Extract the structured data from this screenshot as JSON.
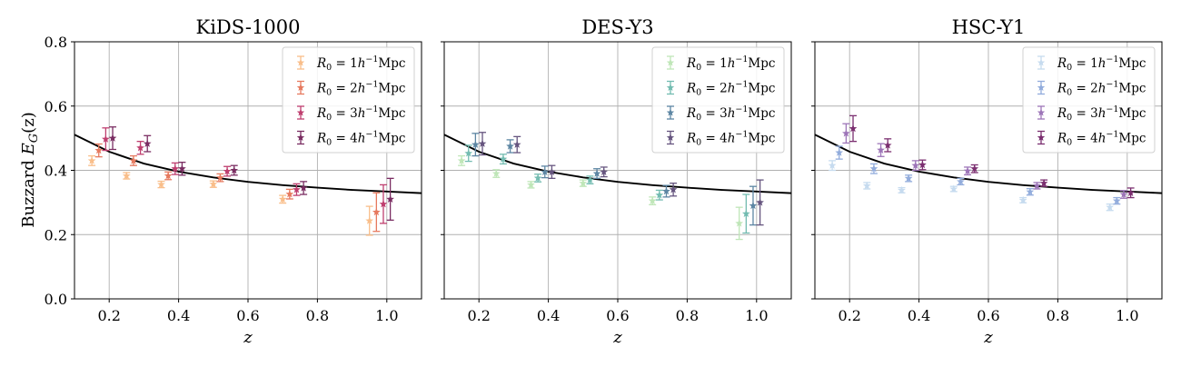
{
  "chart_data": {
    "type": "scatter",
    "ylabel_prefix": "Buzzard ",
    "ylabel_math": "E",
    "ylabel_sub": "G",
    "ylabel_arg": "(z)",
    "xlabel": "z",
    "xlim": [
      0.1,
      1.1
    ],
    "ylim": [
      0.0,
      0.8
    ],
    "xticks": [
      0.2,
      0.4,
      0.6,
      0.8,
      1.0
    ],
    "xtick_labels": [
      "0.2",
      "0.4",
      "0.6",
      "0.8",
      "1.0"
    ],
    "yticks": [
      0.0,
      0.2,
      0.4,
      0.6,
      0.8
    ],
    "ytick_labels": [
      "0.0",
      "0.2",
      "0.4",
      "0.6",
      "0.8"
    ],
    "theory_curve": {
      "color": "#000000",
      "points": [
        [
          0.1,
          0.511
        ],
        [
          0.2,
          0.458
        ],
        [
          0.3,
          0.421
        ],
        [
          0.4,
          0.396
        ],
        [
          0.5,
          0.378
        ],
        [
          0.6,
          0.364
        ],
        [
          0.7,
          0.354
        ],
        [
          0.8,
          0.346
        ],
        [
          0.9,
          0.339
        ],
        [
          1.0,
          0.334
        ],
        [
          1.1,
          0.329
        ]
      ]
    },
    "legend_entries": [
      {
        "prefix": "R",
        "sub": "0",
        "mid": " = ",
        "num": "1",
        "h": "h",
        "sup": "−1",
        "unit": "Mpc"
      },
      {
        "prefix": "R",
        "sub": "0",
        "mid": " = ",
        "num": "2",
        "h": "h",
        "sup": "−1",
        "unit": "Mpc"
      },
      {
        "prefix": "R",
        "sub": "0",
        "mid": " = ",
        "num": "3",
        "h": "h",
        "sup": "−1",
        "unit": "Mpc"
      },
      {
        "prefix": "R",
        "sub": "0",
        "mid": " = ",
        "num": "4",
        "h": "h",
        "sup": "−1",
        "unit": "Mpc"
      }
    ],
    "panels": [
      {
        "title": "KiDS-1000",
        "legend_location": "top-right",
        "colors": [
          "#f9be8a",
          "#e67a5f",
          "#bf3f6f",
          "#7a2d62"
        ],
        "series": [
          {
            "name": "R0 = 1 h^-1 Mpc",
            "points": [
              [
                0.15,
                0.43,
                0.015
              ],
              [
                0.25,
                0.383,
                0.01
              ],
              [
                0.35,
                0.356,
                0.01
              ],
              [
                0.5,
                0.357,
                0.01
              ],
              [
                0.7,
                0.31,
                0.012
              ],
              [
                0.95,
                0.243,
                0.045
              ]
            ]
          },
          {
            "name": "R0 = 2 h^-1 Mpc",
            "points": [
              [
                0.17,
                0.462,
                0.02
              ],
              [
                0.27,
                0.43,
                0.015
              ],
              [
                0.37,
                0.383,
                0.012
              ],
              [
                0.52,
                0.377,
                0.012
              ],
              [
                0.72,
                0.326,
                0.015
              ],
              [
                0.97,
                0.27,
                0.06
              ]
            ]
          },
          {
            "name": "R0 = 3 h^-1 Mpc",
            "points": [
              [
                0.19,
                0.497,
                0.035
              ],
              [
                0.29,
                0.47,
                0.02
              ],
              [
                0.39,
                0.405,
                0.018
              ],
              [
                0.54,
                0.397,
                0.015
              ],
              [
                0.74,
                0.34,
                0.018
              ],
              [
                0.99,
                0.295,
                0.06
              ]
            ]
          },
          {
            "name": "R0 = 4 h^-1 Mpc",
            "points": [
              [
                0.21,
                0.5,
                0.035
              ],
              [
                0.31,
                0.483,
                0.025
              ],
              [
                0.41,
                0.405,
                0.02
              ],
              [
                0.56,
                0.4,
                0.015
              ],
              [
                0.76,
                0.345,
                0.02
              ],
              [
                1.01,
                0.31,
                0.065
              ]
            ]
          }
        ]
      },
      {
        "title": "DES-Y3",
        "legend_location": "top-right",
        "colors": [
          "#bfe6b8",
          "#73bcb1",
          "#5d86a3",
          "#66557f"
        ],
        "series": [
          {
            "name": "R0 = 1 h^-1 Mpc",
            "points": [
              [
                0.15,
                0.43,
                0.015
              ],
              [
                0.25,
                0.39,
                0.012
              ],
              [
                0.35,
                0.355,
                0.01
              ],
              [
                0.5,
                0.36,
                0.01
              ],
              [
                0.7,
                0.305,
                0.012
              ],
              [
                0.95,
                0.235,
                0.05
              ]
            ]
          },
          {
            "name": "R0 = 2 h^-1 Mpc",
            "points": [
              [
                0.17,
                0.453,
                0.025
              ],
              [
                0.27,
                0.435,
                0.015
              ],
              [
                0.37,
                0.376,
                0.012
              ],
              [
                0.52,
                0.37,
                0.012
              ],
              [
                0.72,
                0.323,
                0.015
              ],
              [
                0.97,
                0.265,
                0.06
              ]
            ]
          },
          {
            "name": "R0 = 3 h^-1 Mpc",
            "points": [
              [
                0.19,
                0.48,
                0.035
              ],
              [
                0.29,
                0.475,
                0.02
              ],
              [
                0.39,
                0.395,
                0.018
              ],
              [
                0.54,
                0.39,
                0.015
              ],
              [
                0.74,
                0.335,
                0.018
              ],
              [
                0.99,
                0.29,
                0.06
              ]
            ]
          },
          {
            "name": "R0 = 4 h^-1 Mpc",
            "points": [
              [
                0.21,
                0.483,
                0.035
              ],
              [
                0.31,
                0.48,
                0.025
              ],
              [
                0.41,
                0.395,
                0.02
              ],
              [
                0.56,
                0.395,
                0.015
              ],
              [
                0.76,
                0.34,
                0.02
              ],
              [
                1.01,
                0.3,
                0.07
              ]
            ]
          }
        ]
      },
      {
        "title": "HSC-Y1",
        "legend_location": "top-right",
        "colors": [
          "#c6dbef",
          "#92acdc",
          "#9d75b8",
          "#7b2f70"
        ],
        "series": [
          {
            "name": "R0 = 1 h^-1 Mpc",
            "points": [
              [
                0.15,
                0.415,
                0.015
              ],
              [
                0.25,
                0.352,
                0.01
              ],
              [
                0.35,
                0.338,
                0.008
              ],
              [
                0.5,
                0.342,
                0.008
              ],
              [
                0.7,
                0.307,
                0.008
              ],
              [
                0.95,
                0.285,
                0.01
              ]
            ]
          },
          {
            "name": "R0 = 2 h^-1 Mpc",
            "points": [
              [
                0.17,
                0.455,
                0.02
              ],
              [
                0.27,
                0.405,
                0.015
              ],
              [
                0.37,
                0.375,
                0.01
              ],
              [
                0.52,
                0.365,
                0.01
              ],
              [
                0.72,
                0.333,
                0.01
              ],
              [
                0.97,
                0.305,
                0.01
              ]
            ]
          },
          {
            "name": "R0 = 3 h^-1 Mpc",
            "points": [
              [
                0.19,
                0.515,
                0.03
              ],
              [
                0.29,
                0.463,
                0.02
              ],
              [
                0.39,
                0.415,
                0.015
              ],
              [
                0.54,
                0.398,
                0.012
              ],
              [
                0.74,
                0.352,
                0.01
              ],
              [
                0.99,
                0.325,
                0.012
              ]
            ]
          },
          {
            "name": "R0 = 4 h^-1 Mpc",
            "points": [
              [
                0.21,
                0.53,
                0.04
              ],
              [
                0.31,
                0.478,
                0.02
              ],
              [
                0.41,
                0.417,
                0.015
              ],
              [
                0.56,
                0.405,
                0.012
              ],
              [
                0.76,
                0.36,
                0.01
              ],
              [
                1.01,
                0.33,
                0.015
              ]
            ]
          }
        ]
      }
    ]
  }
}
